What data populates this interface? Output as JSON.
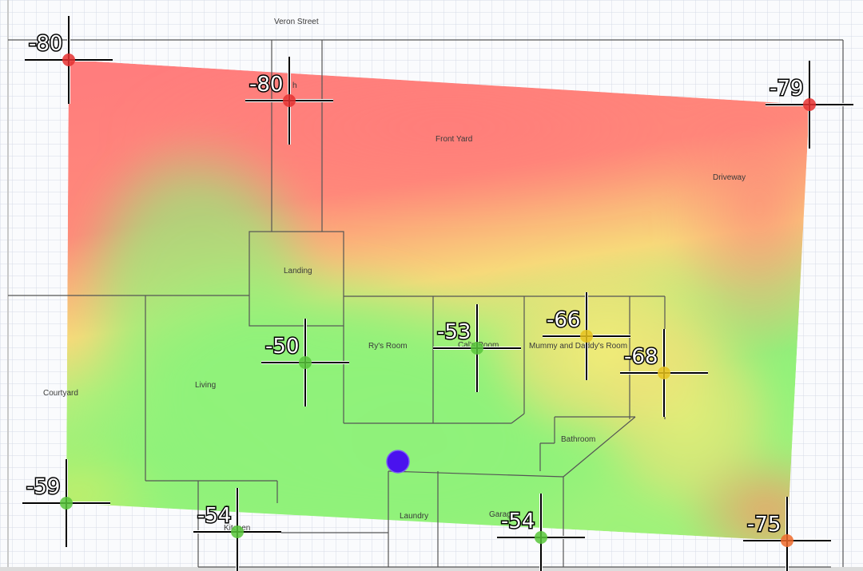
{
  "plan": {
    "labels": {
      "street": "Veron Street",
      "porch": "h",
      "front_yard": "Front Yard",
      "driveway": "Driveway",
      "landing": "Landing",
      "rys_room": "Ry's Room",
      "cals_room": "Cal's Room",
      "mummy_daddys_room": "Mummy and Daddy's Room",
      "living": "Living",
      "courtyard": "Courtyard",
      "bathroom": "Bathroom",
      "laundry": "Laundry",
      "garage": "Garage",
      "kitchen": "Kitchen"
    },
    "colors": {
      "weak": "#ff7a7a",
      "medium": "#f2ea72",
      "strong": "#8ff27a",
      "marker_weak": "#e53030",
      "marker_medium": "#e6c21a",
      "marker_strong": "#57c53a",
      "marker_orange": "#ee6a2a",
      "access_point": "#4a12ee"
    }
  },
  "readings": [
    {
      "id": "r1",
      "label": "-80"
    },
    {
      "id": "r2",
      "label": "-80"
    },
    {
      "id": "r3",
      "label": "-79"
    },
    {
      "id": "r4",
      "label": "-50"
    },
    {
      "id": "r5",
      "label": "-53"
    },
    {
      "id": "r6",
      "label": "-66"
    },
    {
      "id": "r7",
      "label": "-68"
    },
    {
      "id": "r8",
      "label": "-59"
    },
    {
      "id": "r9",
      "label": "-54"
    },
    {
      "id": "r10",
      "label": "-54"
    },
    {
      "id": "r11",
      "label": "-75"
    }
  ],
  "access_point": {
    "icon": "access-point-icon"
  }
}
